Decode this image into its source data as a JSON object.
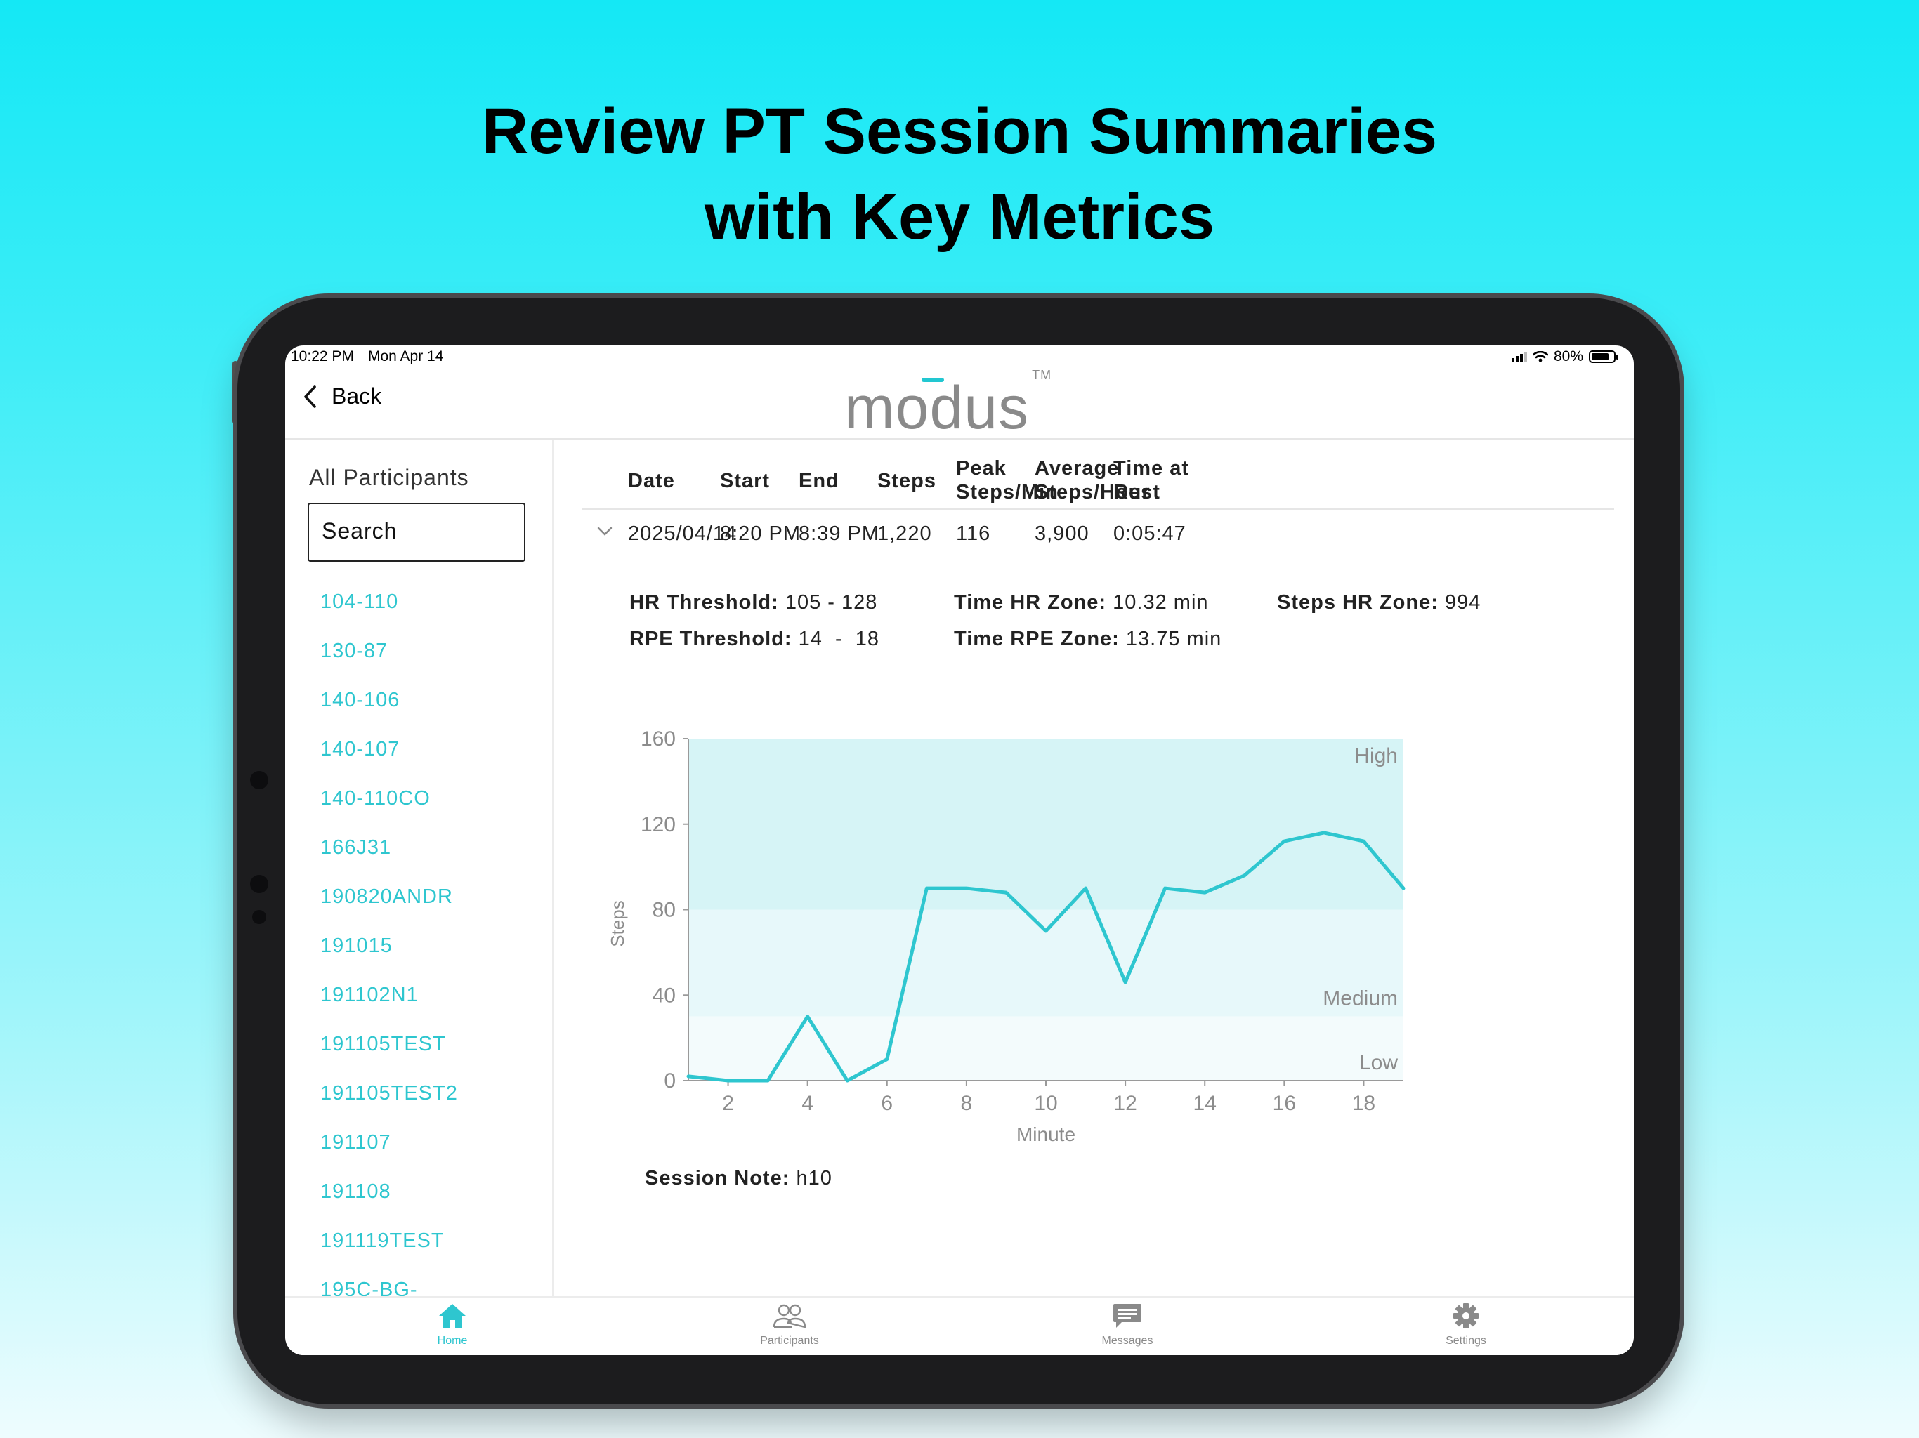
{
  "headline": {
    "line1": "Review PT Session Summaries",
    "line2": "with Key Metrics"
  },
  "status_bar": {
    "time": "10:22 PM",
    "date": "Mon Apr 14",
    "battery": "80%"
  },
  "nav": {
    "back_label": "Back",
    "logo_text": "modus",
    "logo_mark": "TM"
  },
  "sidebar": {
    "title": "All Participants",
    "search_placeholder": "Search",
    "participants": [
      "104-110",
      "130-87",
      "140-106",
      "140-107",
      "140-110CO",
      "166J31",
      "190820ANDR",
      "191015",
      "191102N1",
      "191105TEST",
      "191105TEST2",
      "191107",
      "191108",
      "191119TEST",
      "195C-BG-"
    ]
  },
  "table": {
    "headers": {
      "date": "Date",
      "start": "Start",
      "end": "End",
      "steps": "Steps",
      "peak_1": "Peak",
      "peak_2": "Steps/Min",
      "avg_1": "Average",
      "avg_2": "Steps/Hour",
      "rest_1": "Time at",
      "rest_2": "Rest"
    },
    "row": {
      "date": "2025/04/14",
      "start": "8:20 PM",
      "end": "8:39 PM",
      "steps": "1,220",
      "peak": "116",
      "avg": "3,900",
      "rest": "0:05:47"
    }
  },
  "metrics": {
    "hr_threshold_label": "HR Threshold:",
    "hr_threshold_value": "105 - 128",
    "rpe_threshold_label": "RPE Threshold:",
    "rpe_threshold_value": "14  -  18",
    "time_hr_zone_label": "Time HR Zone:",
    "time_hr_zone_value": "10.32 min",
    "time_rpe_zone_label": "Time RPE Zone:",
    "time_rpe_zone_value": "13.75 min",
    "steps_hr_zone_label": "Steps HR Zone:",
    "steps_hr_zone_value": "994"
  },
  "chart_data": {
    "type": "line",
    "xlabel": "Minute",
    "ylabel": "Steps",
    "xlim": [
      1,
      19
    ],
    "ylim": [
      0,
      160
    ],
    "x_ticks": [
      2,
      4,
      6,
      8,
      10,
      12,
      14,
      16,
      18
    ],
    "y_ticks": [
      0,
      40,
      80,
      120,
      160
    ],
    "bands": [
      {
        "label": "High",
        "from": 80,
        "to": 160,
        "color": "#d6f4f6"
      },
      {
        "label": "Medium",
        "from": 30,
        "to": 80,
        "color": "#e7f8fa"
      },
      {
        "label": "Low",
        "from": 0,
        "to": 30,
        "color": "#f3fbfc"
      }
    ],
    "line_color": "#2ec6cf",
    "series": [
      {
        "x": [
          1,
          2,
          3,
          4,
          5,
          6,
          7,
          8,
          9,
          10,
          11,
          12,
          13,
          14,
          15,
          16,
          17,
          18,
          19
        ],
        "y": [
          2,
          0,
          0,
          30,
          0,
          10,
          90,
          90,
          88,
          70,
          90,
          46,
          90,
          88,
          96,
          112,
          116,
          112,
          90
        ]
      }
    ]
  },
  "session_note": {
    "label": "Session Note:",
    "value": "h10"
  },
  "tabbar": {
    "items": [
      {
        "label": "Home",
        "icon": "home-icon"
      },
      {
        "label": "Participants",
        "icon": "people-icon"
      },
      {
        "label": "Messages",
        "icon": "message-icon"
      },
      {
        "label": "Settings",
        "icon": "gear-icon"
      }
    ]
  }
}
